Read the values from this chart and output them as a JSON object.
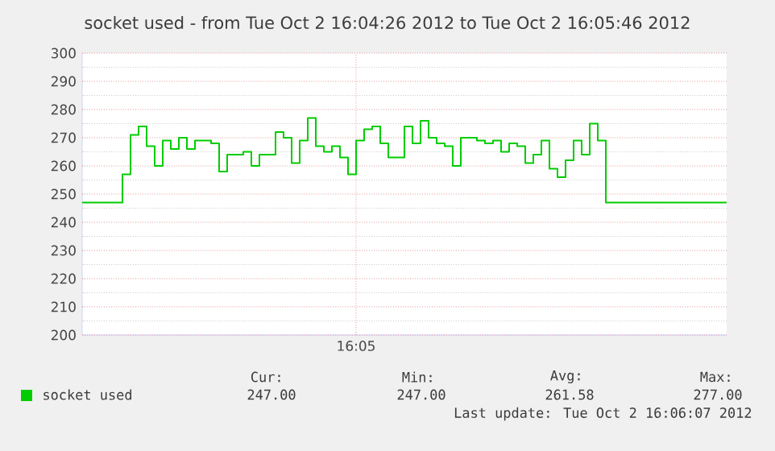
{
  "chart_data": {
    "type": "step",
    "title": "socket used - from Tue Oct  2 16:04:26 2012 to Tue Oct  2 16:05:46 2012",
    "categories": [
      null,
      null,
      null,
      null,
      null,
      null,
      null,
      null,
      null,
      null,
      null,
      null,
      null,
      null,
      null,
      null,
      null,
      null,
      null,
      null,
      null,
      null,
      null,
      null,
      null,
      null,
      null,
      null,
      null,
      null,
      null,
      null,
      null,
      null,
      "16:05",
      null,
      null,
      null,
      null,
      null,
      null,
      null,
      null,
      null,
      null,
      null,
      null,
      null,
      null,
      null,
      null,
      null,
      null,
      null,
      null,
      null,
      null,
      null,
      null,
      null,
      null,
      null,
      null,
      null,
      null,
      null,
      null,
      null,
      null,
      null,
      null,
      null,
      null,
      null,
      null,
      null,
      null,
      null,
      null,
      null,
      null
    ],
    "series": [
      {
        "name": "socket used",
        "color": "#00cc00",
        "values": [
          247,
          247,
          247,
          247,
          247,
          257,
          271,
          274,
          267,
          260,
          269,
          266,
          270,
          266,
          269,
          269,
          268,
          258,
          264,
          264,
          265,
          260,
          264,
          264,
          272,
          270,
          261,
          269,
          277,
          267,
          265,
          267,
          263,
          257,
          269,
          273,
          274,
          268,
          263,
          263,
          274,
          268,
          276,
          270,
          268,
          267,
          260,
          270,
          270,
          269,
          268,
          269,
          265,
          268,
          267,
          261,
          264,
          269,
          259,
          256,
          262,
          269,
          264,
          275,
          269,
          247,
          247,
          247,
          247,
          247,
          247,
          247,
          247,
          247,
          247,
          247,
          247,
          247,
          247,
          247,
          247
        ]
      }
    ],
    "ylim": [
      200,
      300
    ],
    "yticks": [
      {
        "value": 200,
        "label": "200"
      },
      {
        "value": 205,
        "label": null
      },
      {
        "value": 210,
        "label": "210"
      },
      {
        "value": 215,
        "label": null
      },
      {
        "value": 220,
        "label": "220"
      },
      {
        "value": 225,
        "label": null
      },
      {
        "value": 230,
        "label": "230"
      },
      {
        "value": 235,
        "label": null
      },
      {
        "value": 240,
        "label": "240"
      },
      {
        "value": 245,
        "label": null
      },
      {
        "value": 250,
        "label": "250"
      },
      {
        "value": 255,
        "label": null
      },
      {
        "value": 260,
        "label": "260"
      },
      {
        "value": 265,
        "label": null
      },
      {
        "value": 270,
        "label": "270"
      },
      {
        "value": 275,
        "label": null
      },
      {
        "value": 280,
        "label": "280"
      },
      {
        "value": 285,
        "label": null
      },
      {
        "value": 290,
        "label": "290"
      },
      {
        "value": 295,
        "label": null
      },
      {
        "value": 300,
        "label": "300"
      }
    ],
    "grid": true,
    "legend": "bottom",
    "line_style": "solid",
    "annotations": [
      "Cur:",
      "Min:",
      "Avg:",
      "Max:",
      "247.00",
      "247.00",
      "261.58",
      "277.00",
      "Last update: Tue Oct  2 16:06:07 2012"
    ]
  }
}
